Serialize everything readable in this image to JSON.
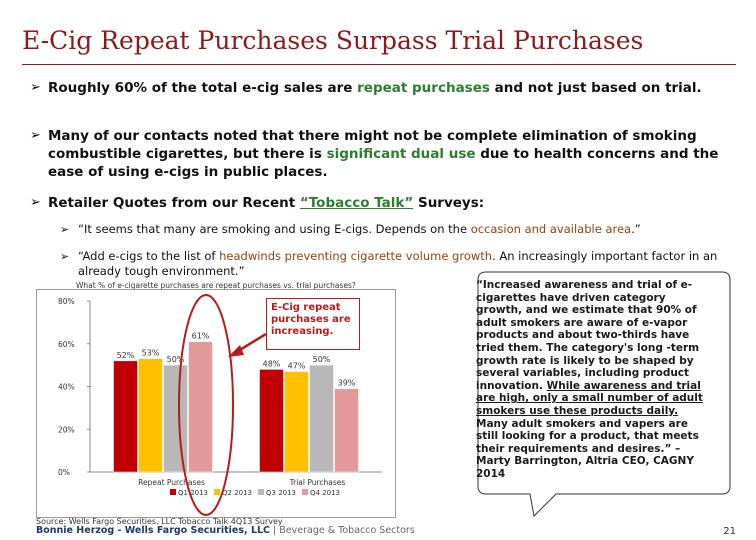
{
  "title": "E-Cig Repeat Purchases Surpass Trial Purchases",
  "bullets": {
    "b1": {
      "pre": "Roughly 60% of the total e-cig sales are ",
      "hl": "repeat purchases",
      "post": " and not just based on trial."
    },
    "b2": {
      "pre": "Many of our contacts noted that there might not be complete elimination of smoking combustible cigarettes, but there is ",
      "hl": "significant dual use",
      "post": " due to health concerns and the ease of using e-cigs in public places."
    },
    "b3": {
      "pre": "Retailer Quotes from our Recent ",
      "hl": "“Tobacco Talk”",
      "post": " Surveys:"
    }
  },
  "subs": {
    "s1": {
      "pre": "“It seems that many are smoking and using E-cigs. Depends on the ",
      "hl": "occasion and available area",
      "post": ".”"
    },
    "s2": {
      "pre": "“Add e-cigs to the list of ",
      "hl": "headwinds preventing cigarette volume growth",
      "post": ". An increasingly important factor in an already tough environment.”"
    }
  },
  "callout": "E-Cig repeat purchases are increasing.",
  "quote": {
    "part1": "“Increased awareness and trial of e-cigarettes have driven category growth, and we estimate that 90% of adult smokers are aware of e-vapor products and about two-thirds have tried them. The category's long -term growth rate is likely to be shaped by several variables, including product innovation. ",
    "underlined": "While awareness and trial are high, only a small number of adult smokers use these products daily.",
    "part2": " Many adult smokers and vapers are still looking for a product, that meets their requirements and desires.” – Marty Barrington, Altria CEO, CAGNY 2014"
  },
  "chart_data": {
    "type": "bar",
    "title": "What % of e-cigarette purchases are repeat purchases vs. trial purchases?",
    "categories": [
      "Repeat Purchases",
      "Trial Purchases"
    ],
    "series": [
      {
        "name": "Q1 2013",
        "values": [
          52,
          48
        ],
        "labels": [
          "52%",
          "48%"
        ],
        "color": "#c00000"
      },
      {
        "name": "Q2 2013",
        "values": [
          53,
          47
        ],
        "labels": [
          "53%",
          "47%"
        ],
        "color": "#ffc000"
      },
      {
        "name": "Q3 2013",
        "values": [
          50,
          50
        ],
        "labels": [
          "50%",
          "50%"
        ],
        "color": "#b8b8b8"
      },
      {
        "name": "Q4 2013",
        "values": [
          61,
          39
        ],
        "labels": [
          "61%",
          "39%"
        ],
        "color": "#e29a9a"
      }
    ],
    "ylim": [
      0,
      80
    ],
    "yticks": [
      0,
      20,
      40,
      60,
      80
    ],
    "ytick_labels": [
      "0%",
      "20%",
      "40%",
      "60%",
      "80%"
    ],
    "grid": false,
    "legend": "bottom"
  },
  "footer": {
    "source": "Source: Wells Fargo Securities, LLC Tobacco Talk 4Q13 Survey",
    "author": "Bonnie Herzog - Wells Fargo Securities, LLC",
    "sep": " | ",
    "dept": "Beverage & Tobacco Sectors",
    "page": "21"
  },
  "colors": {
    "title": "#8b1a1a",
    "highlight_green": "#2e7d32",
    "highlight_brown": "#8b4513",
    "callout_red": "#b71c1c"
  }
}
